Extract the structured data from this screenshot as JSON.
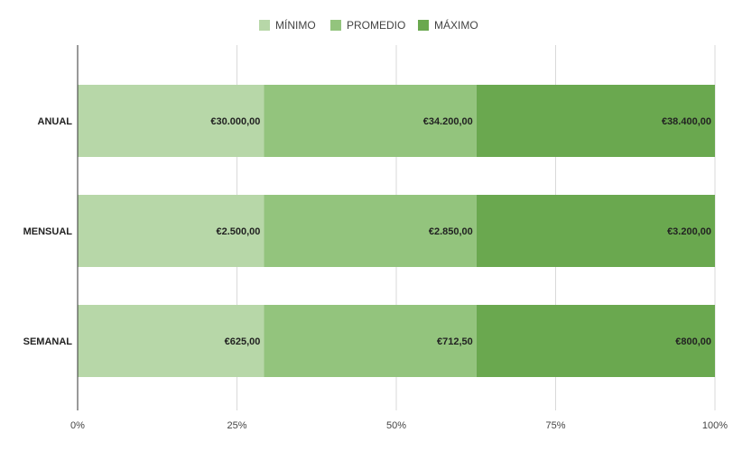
{
  "chart_data": {
    "type": "bar",
    "orientation": "horizontal",
    "stacked": "percent",
    "title": "",
    "xlabel": "",
    "ylabel": "",
    "categories": [
      "ANUAL",
      "MENSUAL",
      "SEMANAL"
    ],
    "series": [
      {
        "name": "MÍNIMO",
        "color": "#b7d7a8",
        "values": [
          30000,
          2500,
          625
        ],
        "labels": [
          "€30.000,00",
          "€2.500,00",
          "€625,00"
        ]
      },
      {
        "name": "PROMEDIO",
        "color": "#93c47d",
        "values": [
          34200,
          2850,
          712.5
        ],
        "labels": [
          "€34.200,00",
          "€2.850,00",
          "€712,50"
        ]
      },
      {
        "name": "MÁXIMO",
        "color": "#6aa84f",
        "values": [
          38400,
          3200,
          800
        ],
        "labels": [
          "€38.400,00",
          "€3.200,00",
          "€800,00"
        ]
      }
    ],
    "xlim": [
      0,
      100
    ],
    "x_ticks": [
      "0%",
      "25%",
      "50%",
      "75%",
      "100%"
    ],
    "grid": true,
    "legend": "top-center"
  }
}
